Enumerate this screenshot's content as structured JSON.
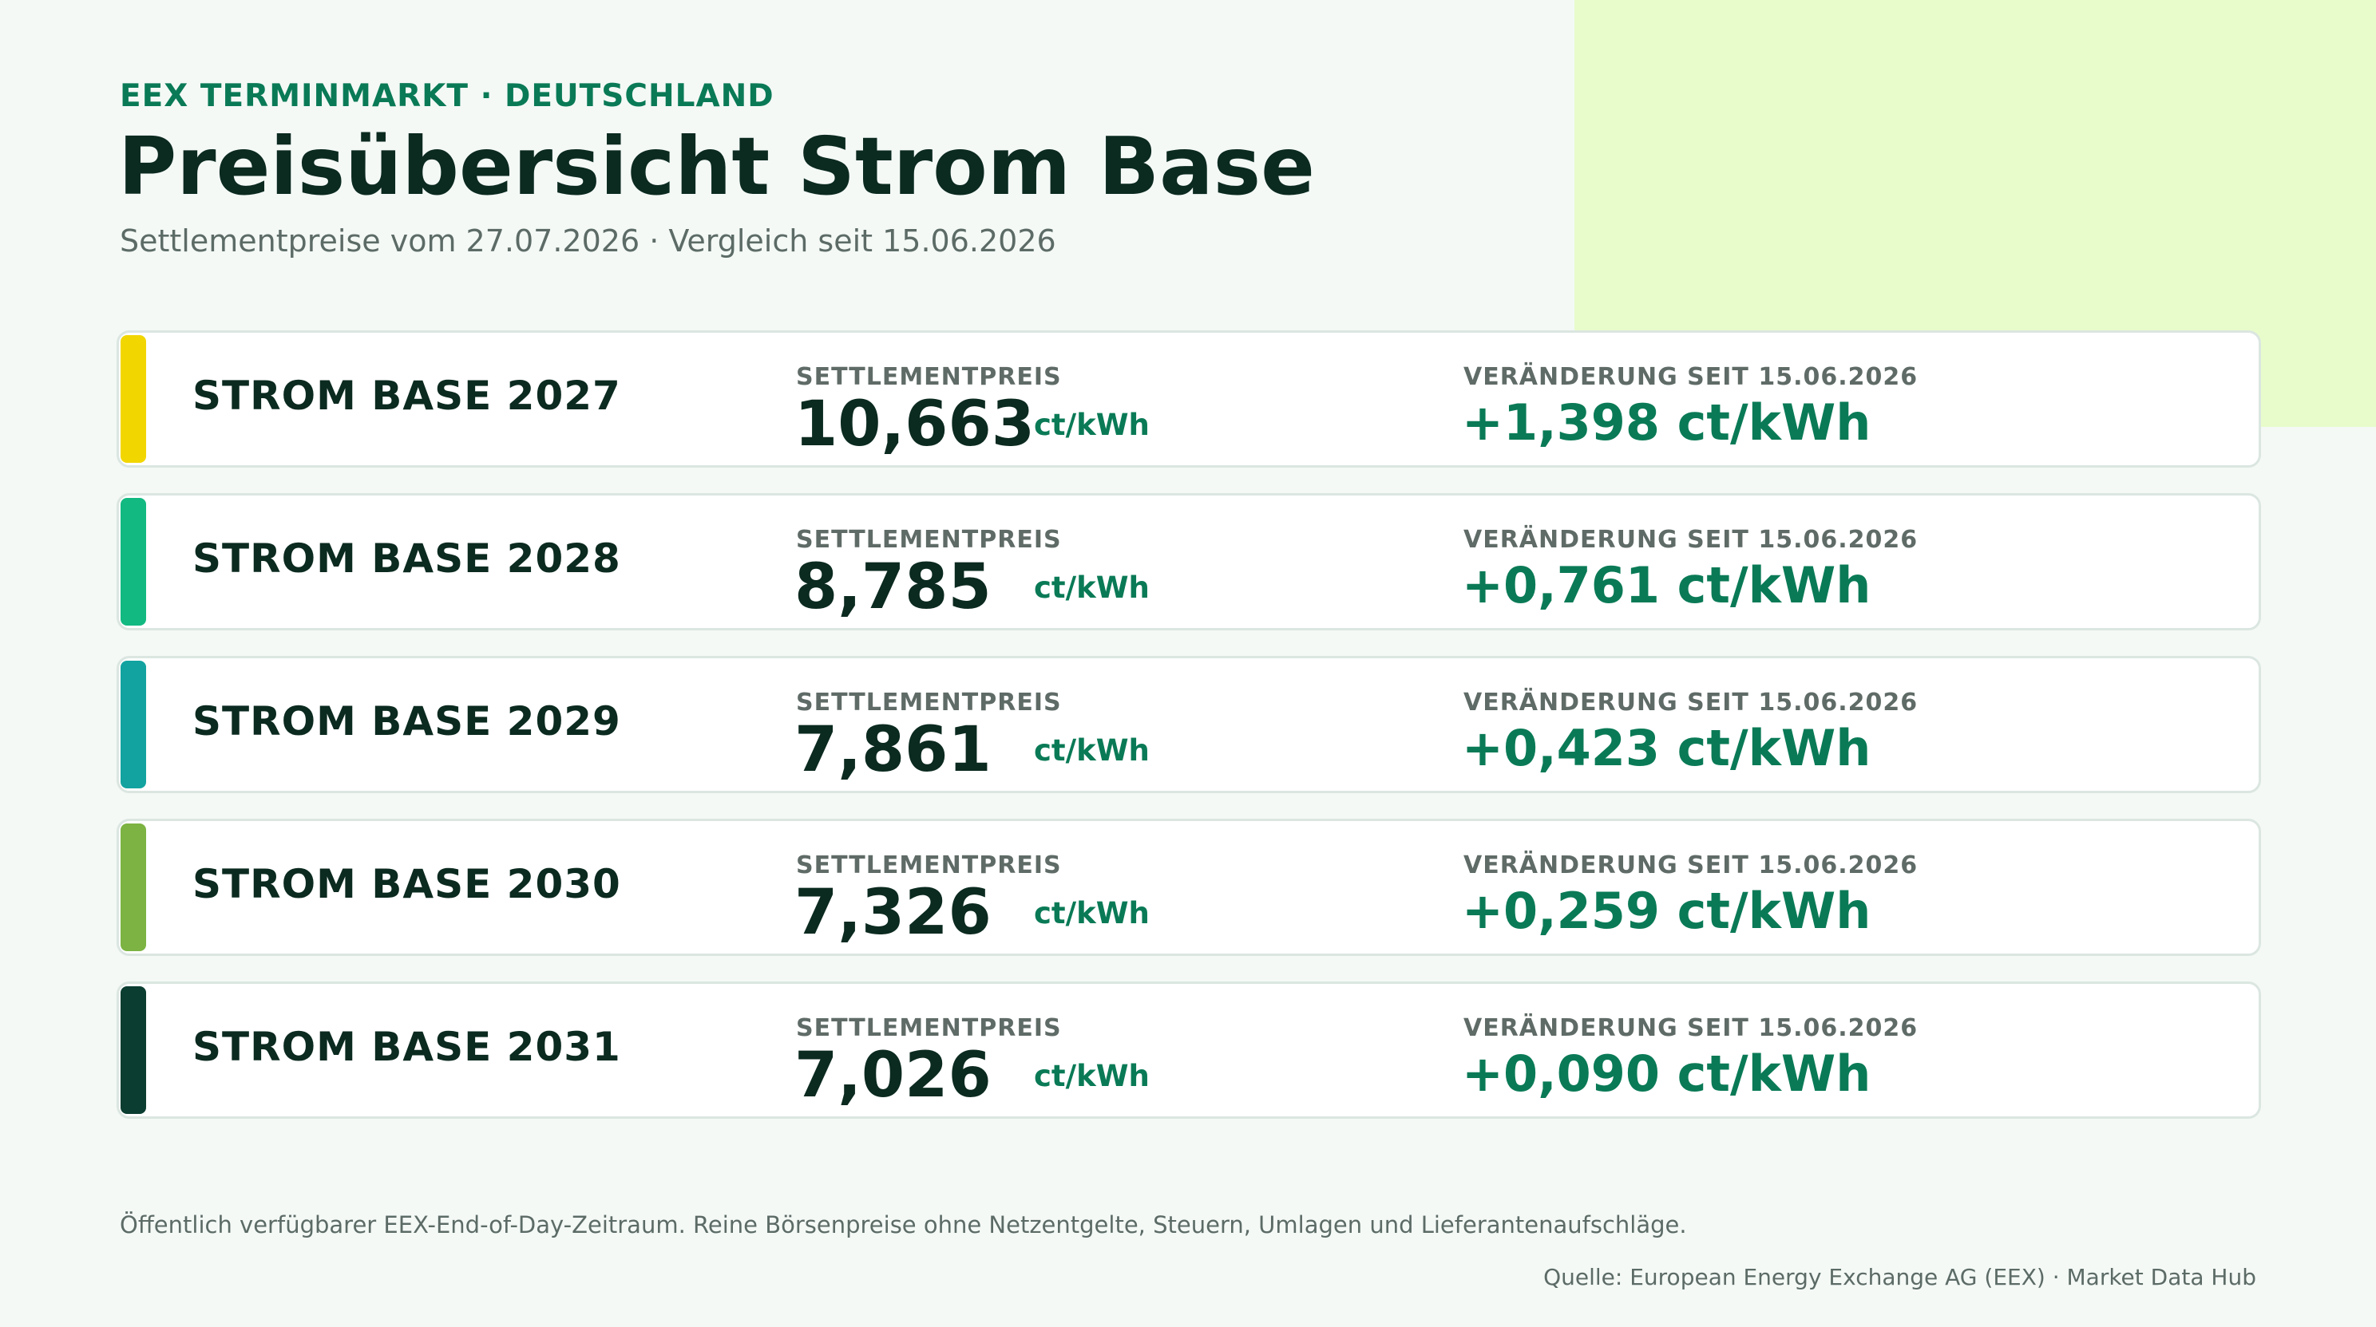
{
  "header": {
    "kicker": "EEX TERMINMARKT · DEUTSCHLAND",
    "title": "Preisübersicht Strom Base",
    "subtitle": "Settlementpreise vom 27.07.2026 · Vergleich seit 15.06.2026"
  },
  "rows": [
    {
      "name": "STROM BASE 2027",
      "price_label": "SETTLEMENTPREIS",
      "price": "10,663",
      "unit": "ct/kWh",
      "change_label": "VERÄNDERUNG SEIT 15.06.2026",
      "change": "+1,398 ct/kWh",
      "color": "#f2d600"
    },
    {
      "name": "STROM BASE 2028",
      "price_label": "SETTLEMENTPREIS",
      "price": "8,785",
      "unit": "ct/kWh",
      "change_label": "VERÄNDERUNG SEIT 15.06.2026",
      "change": "+0,761 ct/kWh",
      "color": "#12b981"
    },
    {
      "name": "STROM BASE 2029",
      "price_label": "SETTLEMENTPREIS",
      "price": "7,861",
      "unit": "ct/kWh",
      "change_label": "VERÄNDERUNG SEIT 15.06.2026",
      "change": "+0,423 ct/kWh",
      "color": "#12a3a0"
    },
    {
      "name": "STROM BASE 2030",
      "price_label": "SETTLEMENTPREIS",
      "price": "7,326",
      "unit": "ct/kWh",
      "change_label": "VERÄNDERUNG SEIT 15.06.2026",
      "change": "+0,259 ct/kWh",
      "color": "#7cb342"
    },
    {
      "name": "STROM BASE 2031",
      "price_label": "SETTLEMENTPREIS",
      "price": "7,026",
      "unit": "ct/kWh",
      "change_label": "VERÄNDERUNG SEIT 15.06.2026",
      "change": "+0,090 ct/kWh",
      "color": "#0b3d30"
    }
  ],
  "footer": {
    "note": "Öffentlich verfügbarer EEX-End-of-Day-Zeitraum. Reine Börsenpreise ohne Netzentgelte, Steuern, Umlagen und Lieferantenaufschläge.",
    "source": "Quelle: European Energy Exchange AG (EEX) · Market Data Hub"
  },
  "colors": {
    "accent": "#0a7a56",
    "accent_block": "#e8fccb",
    "background": "#f4f9f6"
  }
}
